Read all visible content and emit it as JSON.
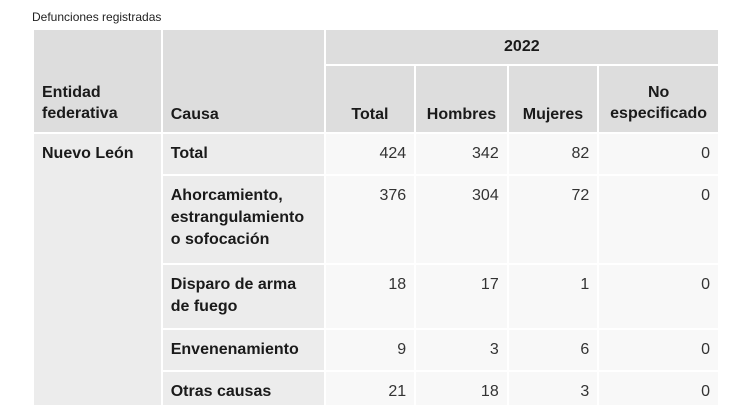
{
  "caption": "Defunciones registradas",
  "headers": {
    "entidad": "Entidad federativa",
    "causa": "Causa",
    "year": "2022",
    "total": "Total",
    "hombres": "Hombres",
    "mujeres": "Mujeres",
    "no_especificado": "No especificado"
  },
  "entidad": "Nuevo León",
  "rows": [
    {
      "causa": "Total",
      "total": "424",
      "hombres": "342",
      "mujeres": "82",
      "no_especificado": "0"
    },
    {
      "causa": "Ahorcamiento, estrangulamiento o sofocación",
      "total": "376",
      "hombres": "304",
      "mujeres": "72",
      "no_especificado": "0"
    },
    {
      "causa": "Disparo de arma de fuego",
      "total": "18",
      "hombres": "17",
      "mujeres": "1",
      "no_especificado": "0"
    },
    {
      "causa": "Envenenamiento",
      "total": "9",
      "hombres": "3",
      "mujeres": "6",
      "no_especificado": "0"
    },
    {
      "causa": "Otras causas",
      "total": "21",
      "hombres": "18",
      "mujeres": "3",
      "no_especificado": "0"
    }
  ],
  "colors": {
    "header_bg": "#dddddd",
    "rowhead_bg": "#ececec",
    "cell_bg": "#f8f8f8"
  }
}
